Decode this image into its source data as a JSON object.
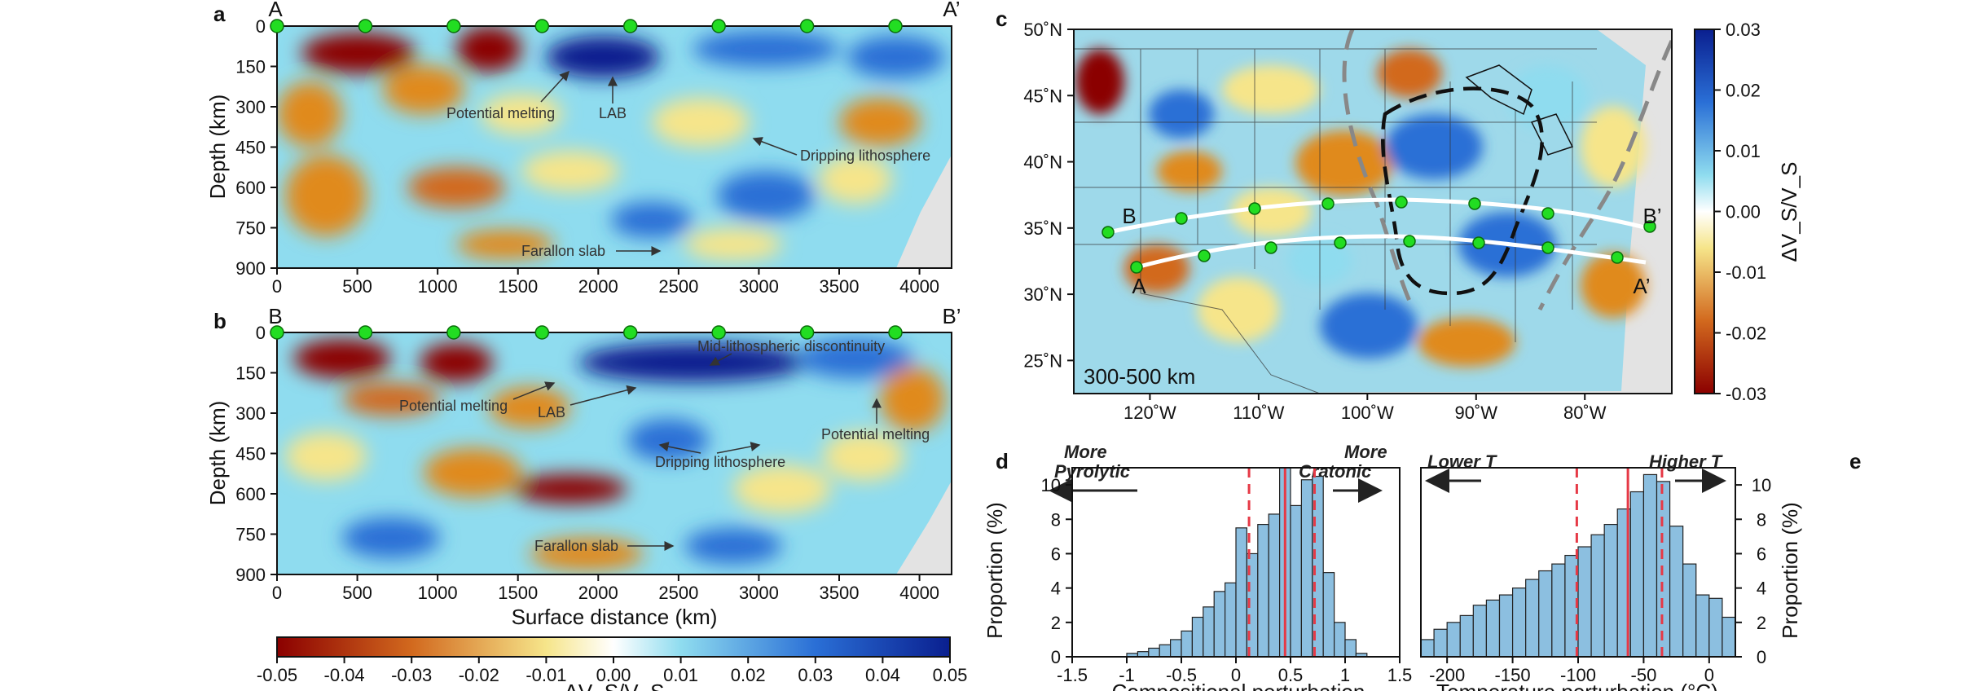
{
  "colors": {
    "red": "#8b0000",
    "orange": "#e08a1e",
    "yellow": "#f6e58a",
    "lightblue": "#8fdcef",
    "blue": "#2a6fd6",
    "darkblue": "#0a1f8f",
    "station": "#22dd22",
    "histbar": "#8cbfe0",
    "medianline": "#e63946",
    "craton_dark": "#111111",
    "craton_gray": "#888888",
    "nodata": "#e3e3e3"
  },
  "panel_a": {
    "letter": "a",
    "start_label": "A",
    "end_label": "A’",
    "ylabel": "Depth (km)",
    "xticks": [
      "0",
      "500",
      "1000",
      "1500",
      "2000",
      "2500",
      "3000",
      "3500",
      "4000"
    ],
    "yticks": [
      "0",
      "150",
      "300",
      "450",
      "600",
      "750",
      "900"
    ],
    "annotations": [
      "Potential melting",
      "LAB",
      "Dripping lithosphere",
      "Farallon slab"
    ]
  },
  "panel_b": {
    "letter": "b",
    "start_label": "B",
    "end_label": "B’",
    "ylabel": "Depth (km)",
    "xlabel": "Surface distance (km)",
    "xticks": [
      "0",
      "500",
      "1000",
      "1500",
      "2000",
      "2500",
      "3000",
      "3500",
      "4000"
    ],
    "yticks": [
      "0",
      "150",
      "300",
      "450",
      "600",
      "750",
      "900"
    ],
    "annotations": [
      "Mid-lithospheric discontinuity",
      "Potential melting",
      "LAB",
      "Potential melting",
      "Dripping lithosphere",
      "Farallon slab"
    ]
  },
  "colorbar_ab": {
    "ticks": [
      "-0.05",
      "-0.04",
      "-0.03",
      "-0.02",
      "-0.01",
      "0.00",
      "0.01",
      "0.02",
      "0.03",
      "0.04",
      "0.05"
    ],
    "label": "ΔV_S/V_S"
  },
  "panel_c": {
    "letter": "c",
    "lat_ticks": [
      "50˚N",
      "45˚N",
      "40˚N",
      "35˚N",
      "30˚N",
      "25˚N"
    ],
    "lon_ticks": [
      "120˚W",
      "110˚W",
      "100˚W",
      "90˚W",
      "80˚W"
    ],
    "depth_label": "300-500 km",
    "profile_labels": [
      "A",
      "A’",
      "B",
      "B’"
    ]
  },
  "colorbar_c": {
    "ticks": [
      "0.03",
      "0.02",
      "0.01",
      "0.00",
      "-0.01",
      "-0.02",
      "-0.03"
    ],
    "label": "ΔV_S/V_S"
  },
  "panel_d": {
    "letter": "d",
    "ylabel": "Proportion (%)",
    "xlabel": "Compositional perturbation",
    "left_arrow": [
      "More",
      "Pyrolytic"
    ],
    "right_arrow": [
      "More",
      "Cratonic"
    ]
  },
  "panel_e": {
    "letter": "e",
    "ylabel": "Proportion (%)",
    "xlabel": "Temperature perturbation (°C)",
    "left_arrow": "Lower T",
    "right_arrow": "Higher T"
  },
  "chart_data": [
    {
      "type": "bar",
      "id": "d",
      "xlabel": "Compositional perturbation",
      "ylabel": "Proportion (%)",
      "xlim": [
        -1.5,
        1.5
      ],
      "ylim": [
        0,
        11
      ],
      "xticks": [
        -1.5,
        -1.0,
        -0.5,
        0.0,
        0.5,
        1.0,
        1.5
      ],
      "yticks": [
        0,
        2,
        4,
        6,
        8,
        10
      ],
      "bin_width": 0.1,
      "bin_starts": [
        -1.0,
        -0.9,
        -0.8,
        -0.7,
        -0.6,
        -0.5,
        -0.4,
        -0.3,
        -0.2,
        -0.1,
        0.0,
        0.1,
        0.2,
        0.3,
        0.4,
        0.5,
        0.6,
        0.7,
        0.8,
        0.9,
        1.0,
        1.1
      ],
      "values": [
        0.2,
        0.3,
        0.5,
        0.7,
        1.0,
        1.5,
        2.3,
        2.9,
        3.8,
        4.3,
        7.5,
        6.0,
        7.7,
        8.3,
        11.0,
        8.8,
        10.3,
        10.5,
        4.9,
        2.0,
        1.0,
        0.2
      ],
      "median": 0.45,
      "bounds": [
        0.12,
        0.72
      ],
      "mean": 0.5
    },
    {
      "type": "bar",
      "id": "e",
      "xlabel": "Temperature perturbation (°C)",
      "ylabel": "Proportion (%)",
      "xlim": [
        -220,
        20
      ],
      "ylim": [
        0,
        11
      ],
      "xticks": [
        -200,
        -150,
        -100,
        -50,
        0
      ],
      "yticks": [
        0,
        2,
        4,
        6,
        8,
        10
      ],
      "bin_width": 10,
      "bin_starts": [
        -220,
        -210,
        -200,
        -190,
        -180,
        -170,
        -160,
        -150,
        -140,
        -130,
        -120,
        -110,
        -100,
        -90,
        -80,
        -70,
        -60,
        -50,
        -40,
        -30,
        -20,
        -10,
        0,
        10
      ],
      "values": [
        1.0,
        1.6,
        2.0,
        2.4,
        3.0,
        3.3,
        3.6,
        4.0,
        4.5,
        5.0,
        5.4,
        5.9,
        6.4,
        7.1,
        7.7,
        8.6,
        9.6,
        10.6,
        10.2,
        7.6,
        5.4,
        3.6,
        3.4,
        2.3
      ],
      "median": -62,
      "bounds": [
        -101,
        -36
      ],
      "mean": -52
    }
  ]
}
